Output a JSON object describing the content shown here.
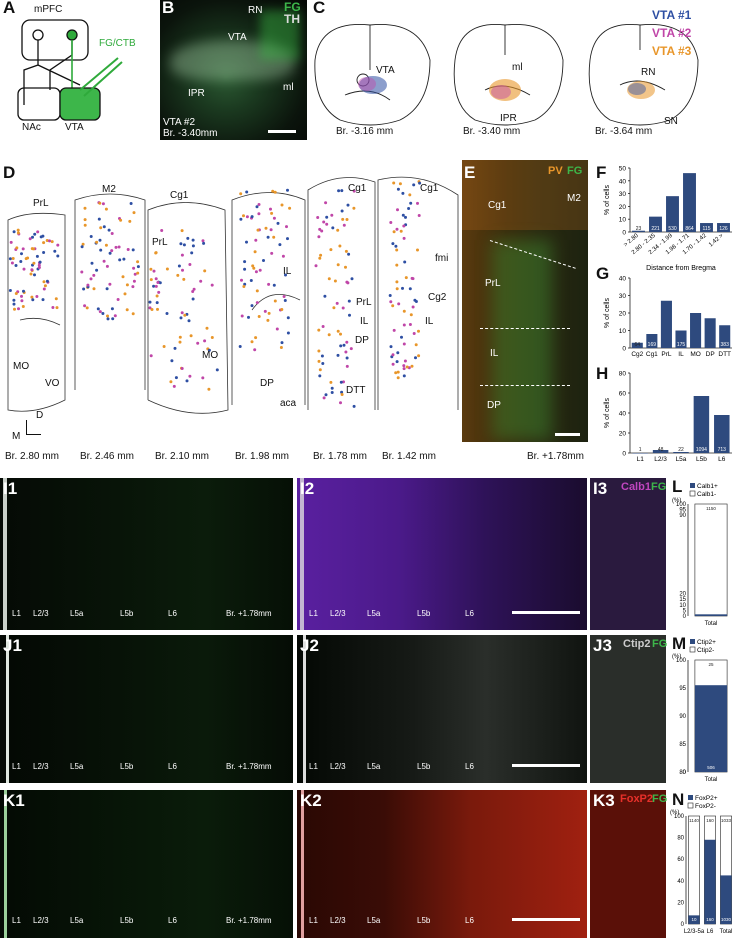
{
  "panels": {
    "A": {
      "letter": "A",
      "mpfc": "mPFC",
      "nac": "NAc",
      "vta": "VTA",
      "tracer": "FG/CTB"
    },
    "B": {
      "letter": "B",
      "fg": "FG",
      "th": "TH",
      "rn": "RN",
      "vta": "VTA",
      "ipr": "IPR",
      "ml": "ml",
      "caption1": "VTA #2",
      "caption2": "Br. -3.40mm"
    },
    "C": {
      "letter": "C",
      "vta": "VTA",
      "ml": "ml",
      "ipr": "IPR",
      "rn": "RN",
      "sn": "SN",
      "br1": "Br. -3.16 mm",
      "br2": "Br. -3.40 mm",
      "br3": "Br. -3.64 mm",
      "legend": [
        {
          "label": "VTA #1",
          "color": "#2e4fa3"
        },
        {
          "label": "VTA #2",
          "color": "#c046a8"
        },
        {
          "label": "VTA #3",
          "color": "#e8962a"
        }
      ]
    },
    "D": {
      "letter": "D",
      "regions": [
        "PrL",
        "M2",
        "Cg1",
        "PrL",
        "IL",
        "MO",
        "VO",
        "MO",
        "DP",
        "aca",
        "Cg1",
        "PrL",
        "IL",
        "DP",
        "DTT",
        "Cg1",
        "fmi",
        "Cg2",
        "IL"
      ],
      "axisD": "D",
      "axisM": "M",
      "sections": [
        "Br. 2.80 mm",
        "Br. 2.46 mm",
        "Br. 2.10 mm",
        "Br. 1.98 mm",
        "Br. 1.78 mm",
        "Br. 1.42 mm"
      ]
    },
    "E": {
      "letter": "E",
      "pv": "PV",
      "fg": "FG",
      "cg1": "Cg1",
      "m2": "M2",
      "prl": "PrL",
      "il": "IL",
      "dp": "DP",
      "br": "Br. +1.78mm"
    },
    "I1": {
      "letter": "I1",
      "layers": [
        "L1",
        "L2/3",
        "L5a",
        "L5b",
        "L6"
      ],
      "br": "Br. +1.78mm"
    },
    "I2": {
      "letter": "I2",
      "layers": [
        "L1",
        "L2/3",
        "L5a",
        "L5b",
        "L6"
      ]
    },
    "I3": {
      "letter": "I3",
      "marker": "Calb1",
      "fg": "FG"
    },
    "J1": {
      "letter": "J1",
      "layers": [
        "L1",
        "L2/3",
        "L5a",
        "L5b",
        "L6"
      ],
      "br": "Br. +1.78mm"
    },
    "J2": {
      "letter": "J2",
      "layers": [
        "L1",
        "L2/3",
        "L5a",
        "L5b",
        "L6"
      ]
    },
    "J3": {
      "letter": "J3",
      "marker": "Ctip2",
      "fg": "FG"
    },
    "K1": {
      "letter": "K1",
      "layers": [
        "L1",
        "L2/3",
        "L5a",
        "L5b",
        "L6"
      ],
      "br": "Br. +1.78mm"
    },
    "K2": {
      "letter": "K2",
      "layers": [
        "L1",
        "L2/3",
        "L5a",
        "L5b",
        "L6"
      ]
    },
    "K3": {
      "letter": "K3",
      "marker": "FoxP2",
      "fg": "FG"
    }
  },
  "chart_data": [
    {
      "panel": "F",
      "type": "bar",
      "ylabel": "% of cells",
      "xlabel": "Distance from Bregma",
      "categories": [
        "> 2.80",
        "2.80 - 2.35",
        "2.34 - 1.99",
        "1.98 - 1.71",
        "1.70 - 1.42",
        "1.42 >"
      ],
      "values": [
        1,
        12,
        28,
        46,
        7,
        7
      ],
      "n_labels": [
        "23",
        "221",
        "530",
        "864",
        "115",
        "126"
      ],
      "ylim": [
        0,
        50
      ],
      "yticks": [
        0,
        10,
        20,
        30,
        40,
        50
      ]
    },
    {
      "panel": "G",
      "type": "bar",
      "ylabel": "% of cells",
      "categories": [
        "Cg2",
        "Cg1",
        "PrL",
        "IL",
        "MO",
        "DP",
        "DTT"
      ],
      "values": [
        3,
        8,
        27,
        10,
        20,
        17,
        13
      ],
      "n_labels": [
        "64",
        "169",
        "",
        "175",
        "",
        "",
        "383"
      ],
      "ylim": [
        0,
        40
      ],
      "yticks": [
        0,
        10,
        20,
        30,
        40
      ]
    },
    {
      "panel": "H",
      "type": "bar",
      "ylabel": "% of cells",
      "categories": [
        "L1",
        "L2/3",
        "L5a",
        "L5b",
        "L6"
      ],
      "values": [
        0,
        3,
        1,
        57,
        38
      ],
      "n_labels": [
        "1",
        "48",
        "22",
        "1094",
        "713"
      ],
      "ylim": [
        0,
        80
      ],
      "yticks": [
        0,
        20,
        40,
        60,
        80
      ]
    },
    {
      "panel": "L",
      "type": "bar",
      "ylabel": "(%)",
      "categories": [
        "Total"
      ],
      "legend": [
        "Calb1+",
        "Calb1-"
      ],
      "values_pos": [
        1.5
      ],
      "values_neg": [
        98.5
      ],
      "n_labels": [
        "1150",
        "18"
      ],
      "yticks": [
        0,
        5,
        10,
        15,
        20,
        90,
        95,
        100
      ]
    },
    {
      "panel": "M",
      "type": "bar",
      "ylabel": "(%)",
      "categories": [
        "Total"
      ],
      "legend": [
        "Ctip2+",
        "Ctip2-"
      ],
      "values_pos": [
        95.5
      ],
      "values_neg": [
        4.5
      ],
      "n_labels": [
        "25",
        "506"
      ],
      "yticks": [
        0,
        80,
        85,
        90,
        95,
        100
      ]
    },
    {
      "panel": "N",
      "type": "bar",
      "ylabel": "(%)",
      "categories": [
        "L2/3-5a",
        "L6",
        "Total"
      ],
      "legend": [
        "FoxP2+",
        "FoxP2-"
      ],
      "values_pos": [
        8,
        78,
        45
      ],
      "values_neg": [
        92,
        22,
        55
      ],
      "n_labels": [
        "1140",
        "160",
        "1033",
        "10",
        "160",
        "1030"
      ],
      "yticks": [
        0,
        20,
        40,
        60,
        80,
        100
      ]
    }
  ]
}
